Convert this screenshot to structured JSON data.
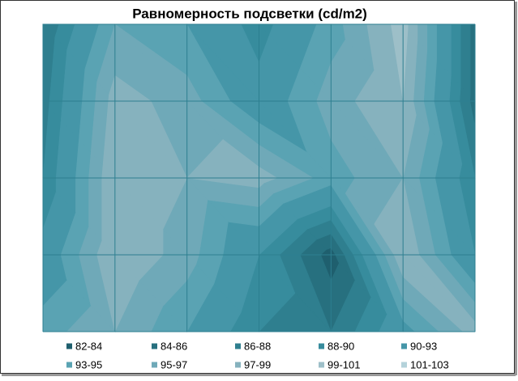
{
  "chart_data": {
    "type": "contour",
    "title": "Равномерность подсветки (cd/m2)",
    "z": [
      [
        86,
        95,
        93,
        89,
        94,
        100,
        85
      ],
      [
        87,
        98,
        96,
        91,
        96,
        99,
        85
      ],
      [
        88,
        99,
        97,
        98,
        94,
        97,
        88
      ],
      [
        91,
        99,
        96,
        90,
        83,
        99,
        90
      ],
      [
        94,
        97,
        93,
        88,
        86,
        92,
        98
      ]
    ],
    "series": [
      {
        "name": "82-84",
        "range": [
          82,
          84
        ],
        "color": "#1f5f6e"
      },
      {
        "name": "84-86",
        "range": [
          84,
          86
        ],
        "color": "#27707f"
      },
      {
        "name": "86-88",
        "range": [
          86,
          88
        ],
        "color": "#2f7f8f"
      },
      {
        "name": "88-90",
        "range": [
          88,
          90
        ],
        "color": "#378c9d"
      },
      {
        "name": "90-93",
        "range": [
          90,
          93
        ],
        "color": "#4596a8"
      },
      {
        "name": "93-95",
        "range": [
          93,
          95
        ],
        "color": "#5aa3b3"
      },
      {
        "name": "95-97",
        "range": [
          95,
          97
        ],
        "color": "#6fa9b8"
      },
      {
        "name": "97-99",
        "range": [
          97,
          99
        ],
        "color": "#86b2be"
      },
      {
        "name": "99-101",
        "range": [
          99,
          101
        ],
        "color": "#9dbfc8"
      },
      {
        "name": "101-103",
        "range": [
          101,
          103
        ],
        "color": "#b4d2da"
      }
    ],
    "grid": true
  }
}
